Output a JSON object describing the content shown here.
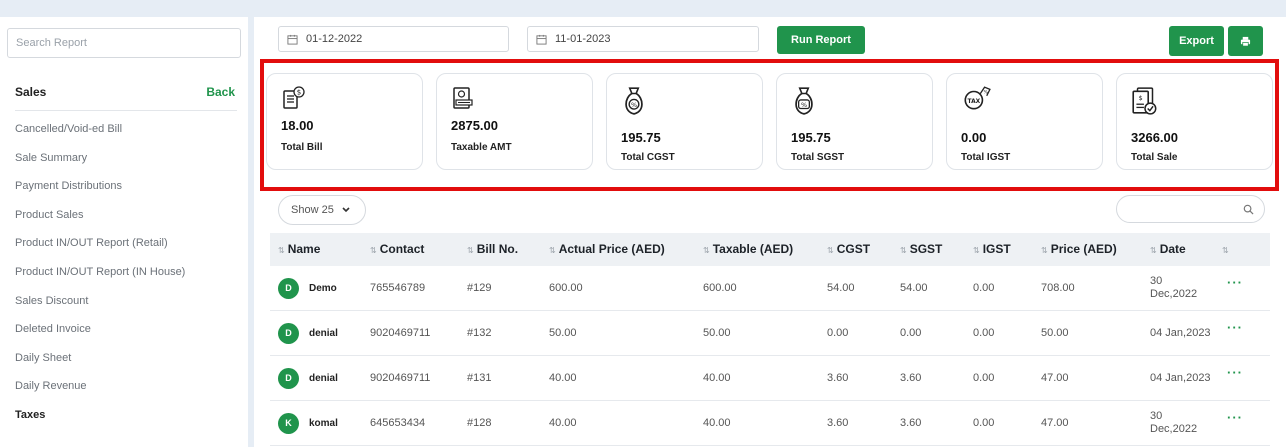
{
  "sidebar": {
    "search_placeholder": "Search Report",
    "title": "Sales",
    "back_label": "Back",
    "items": [
      {
        "label": "Cancelled/Void-ed Bill"
      },
      {
        "label": "Sale Summary"
      },
      {
        "label": "Payment Distributions"
      },
      {
        "label": "Product Sales"
      },
      {
        "label": "Product IN/OUT Report (Retail)"
      },
      {
        "label": "Product IN/OUT Report (IN House)"
      },
      {
        "label": "Sales Discount"
      },
      {
        "label": "Deleted Invoice"
      },
      {
        "label": "Daily Sheet"
      },
      {
        "label": "Daily Revenue"
      },
      {
        "label": "Taxes"
      }
    ]
  },
  "toolbar": {
    "date_from": "01-12-2022",
    "date_to": "11-01-2023",
    "run_report_label": "Run Report",
    "export_label": "Export"
  },
  "cards": [
    {
      "value": "18.00",
      "label": "Total Bill",
      "icon": "bill-icon"
    },
    {
      "value": "2875.00",
      "label": "Taxable AMT",
      "icon": "receipt-icon"
    },
    {
      "value": "195.75",
      "label": "Total CGST",
      "icon": "money-bag-icon"
    },
    {
      "value": "195.75",
      "label": "Total SGST",
      "icon": "money-bag-icon"
    },
    {
      "value": "0.00",
      "label": "Total IGST",
      "icon": "tax-tag-icon"
    },
    {
      "value": "3266.00",
      "label": "Total Sale",
      "icon": "invoice-check-icon"
    }
  ],
  "table": {
    "show_label": "Show 25",
    "columns": [
      "Name",
      "Contact",
      "Bill No.",
      "Actual Price (AED)",
      "Taxable (AED)",
      "CGST",
      "SGST",
      "IGST",
      "Price (AED)",
      "Date",
      ""
    ],
    "rows": [
      {
        "initial": "D",
        "name": "Demo",
        "contact": "765546789",
        "bill": "#129",
        "actual": "600.00",
        "taxable": "600.00",
        "cgst": "54.00",
        "sgst": "54.00",
        "igst": "0.00",
        "price": "708.00",
        "date": "30 Dec,2022"
      },
      {
        "initial": "D",
        "name": "denial",
        "contact": "9020469711",
        "bill": "#132",
        "actual": "50.00",
        "taxable": "50.00",
        "cgst": "0.00",
        "sgst": "0.00",
        "igst": "0.00",
        "price": "50.00",
        "date": "04 Jan,2023"
      },
      {
        "initial": "D",
        "name": "denial",
        "contact": "9020469711",
        "bill": "#131",
        "actual": "40.00",
        "taxable": "40.00",
        "cgst": "3.60",
        "sgst": "3.60",
        "igst": "0.00",
        "price": "47.00",
        "date": "04 Jan,2023"
      },
      {
        "initial": "K",
        "name": "komal",
        "contact": "645653434",
        "bill": "#128",
        "actual": "40.00",
        "taxable": "40.00",
        "cgst": "3.60",
        "sgst": "3.60",
        "igst": "0.00",
        "price": "47.00",
        "date": "30 Dec,2022"
      }
    ],
    "more_label": "···"
  },
  "colors": {
    "accent": "#20944c",
    "highlight": "#e20d0d",
    "background": "#e6edf5"
  }
}
